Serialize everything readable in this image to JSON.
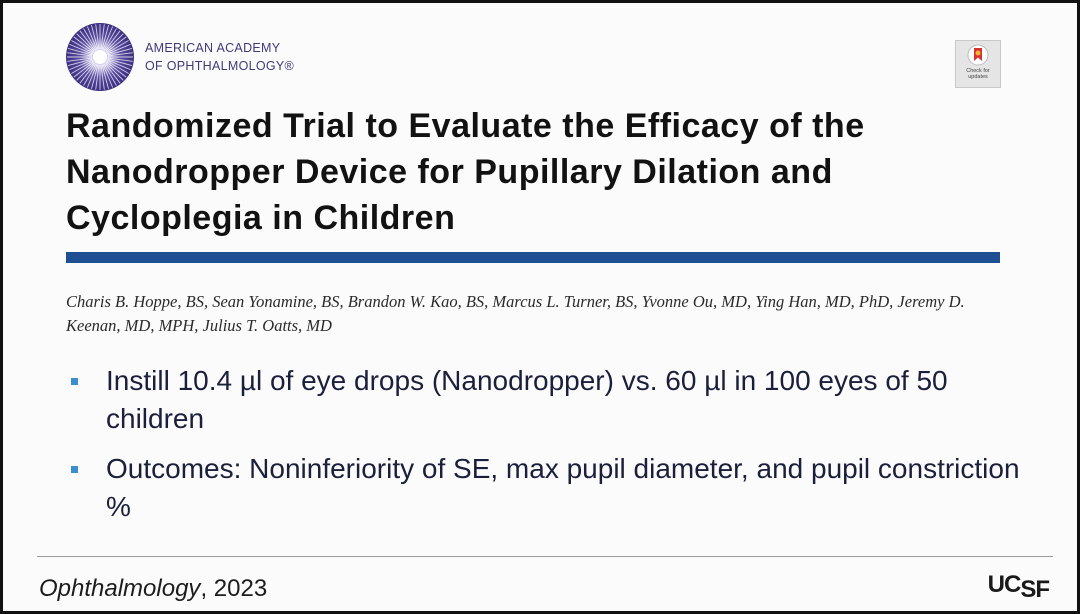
{
  "organization": {
    "line1": "AMERICAN ACADEMY",
    "line2": "OF OPHTHALMOLOGY®",
    "logo_icon": "starburst-eye-emblem"
  },
  "badge": {
    "text": "Check for updates",
    "icon": "bookmark-ribbon-icon"
  },
  "title": "Randomized Trial to Evaluate the Efficacy of the Nanodropper Device for Pupillary Dilation and Cycloplegia in Children",
  "authors": "Charis B. Hoppe, BS, Sean Yonamine, BS, Brandon W. Kao, BS, Marcus L. Turner, BS, Yvonne Ou, MD, Ying Han, MD, PhD, Jeremy D. Keenan, MD, MPH, Julius T. Oatts, MD",
  "bullets": [
    "Instill 10.4 µl of eye drops (Nanodropper) vs. 60 µl in 100 eyes of 50 children",
    "Outcomes: Noninferiority of SE, max pupil diameter, and pupil constriction %"
  ],
  "footer": {
    "journal": "Ophthalmology",
    "year_suffix": ", 2023",
    "institution_logo": "UCSF"
  },
  "colors": {
    "title_rule": "#1f4f93",
    "bullet_marker": "#3a8fd0",
    "academy_text": "#3f3a7a",
    "emblem": "#4b3f8f"
  }
}
